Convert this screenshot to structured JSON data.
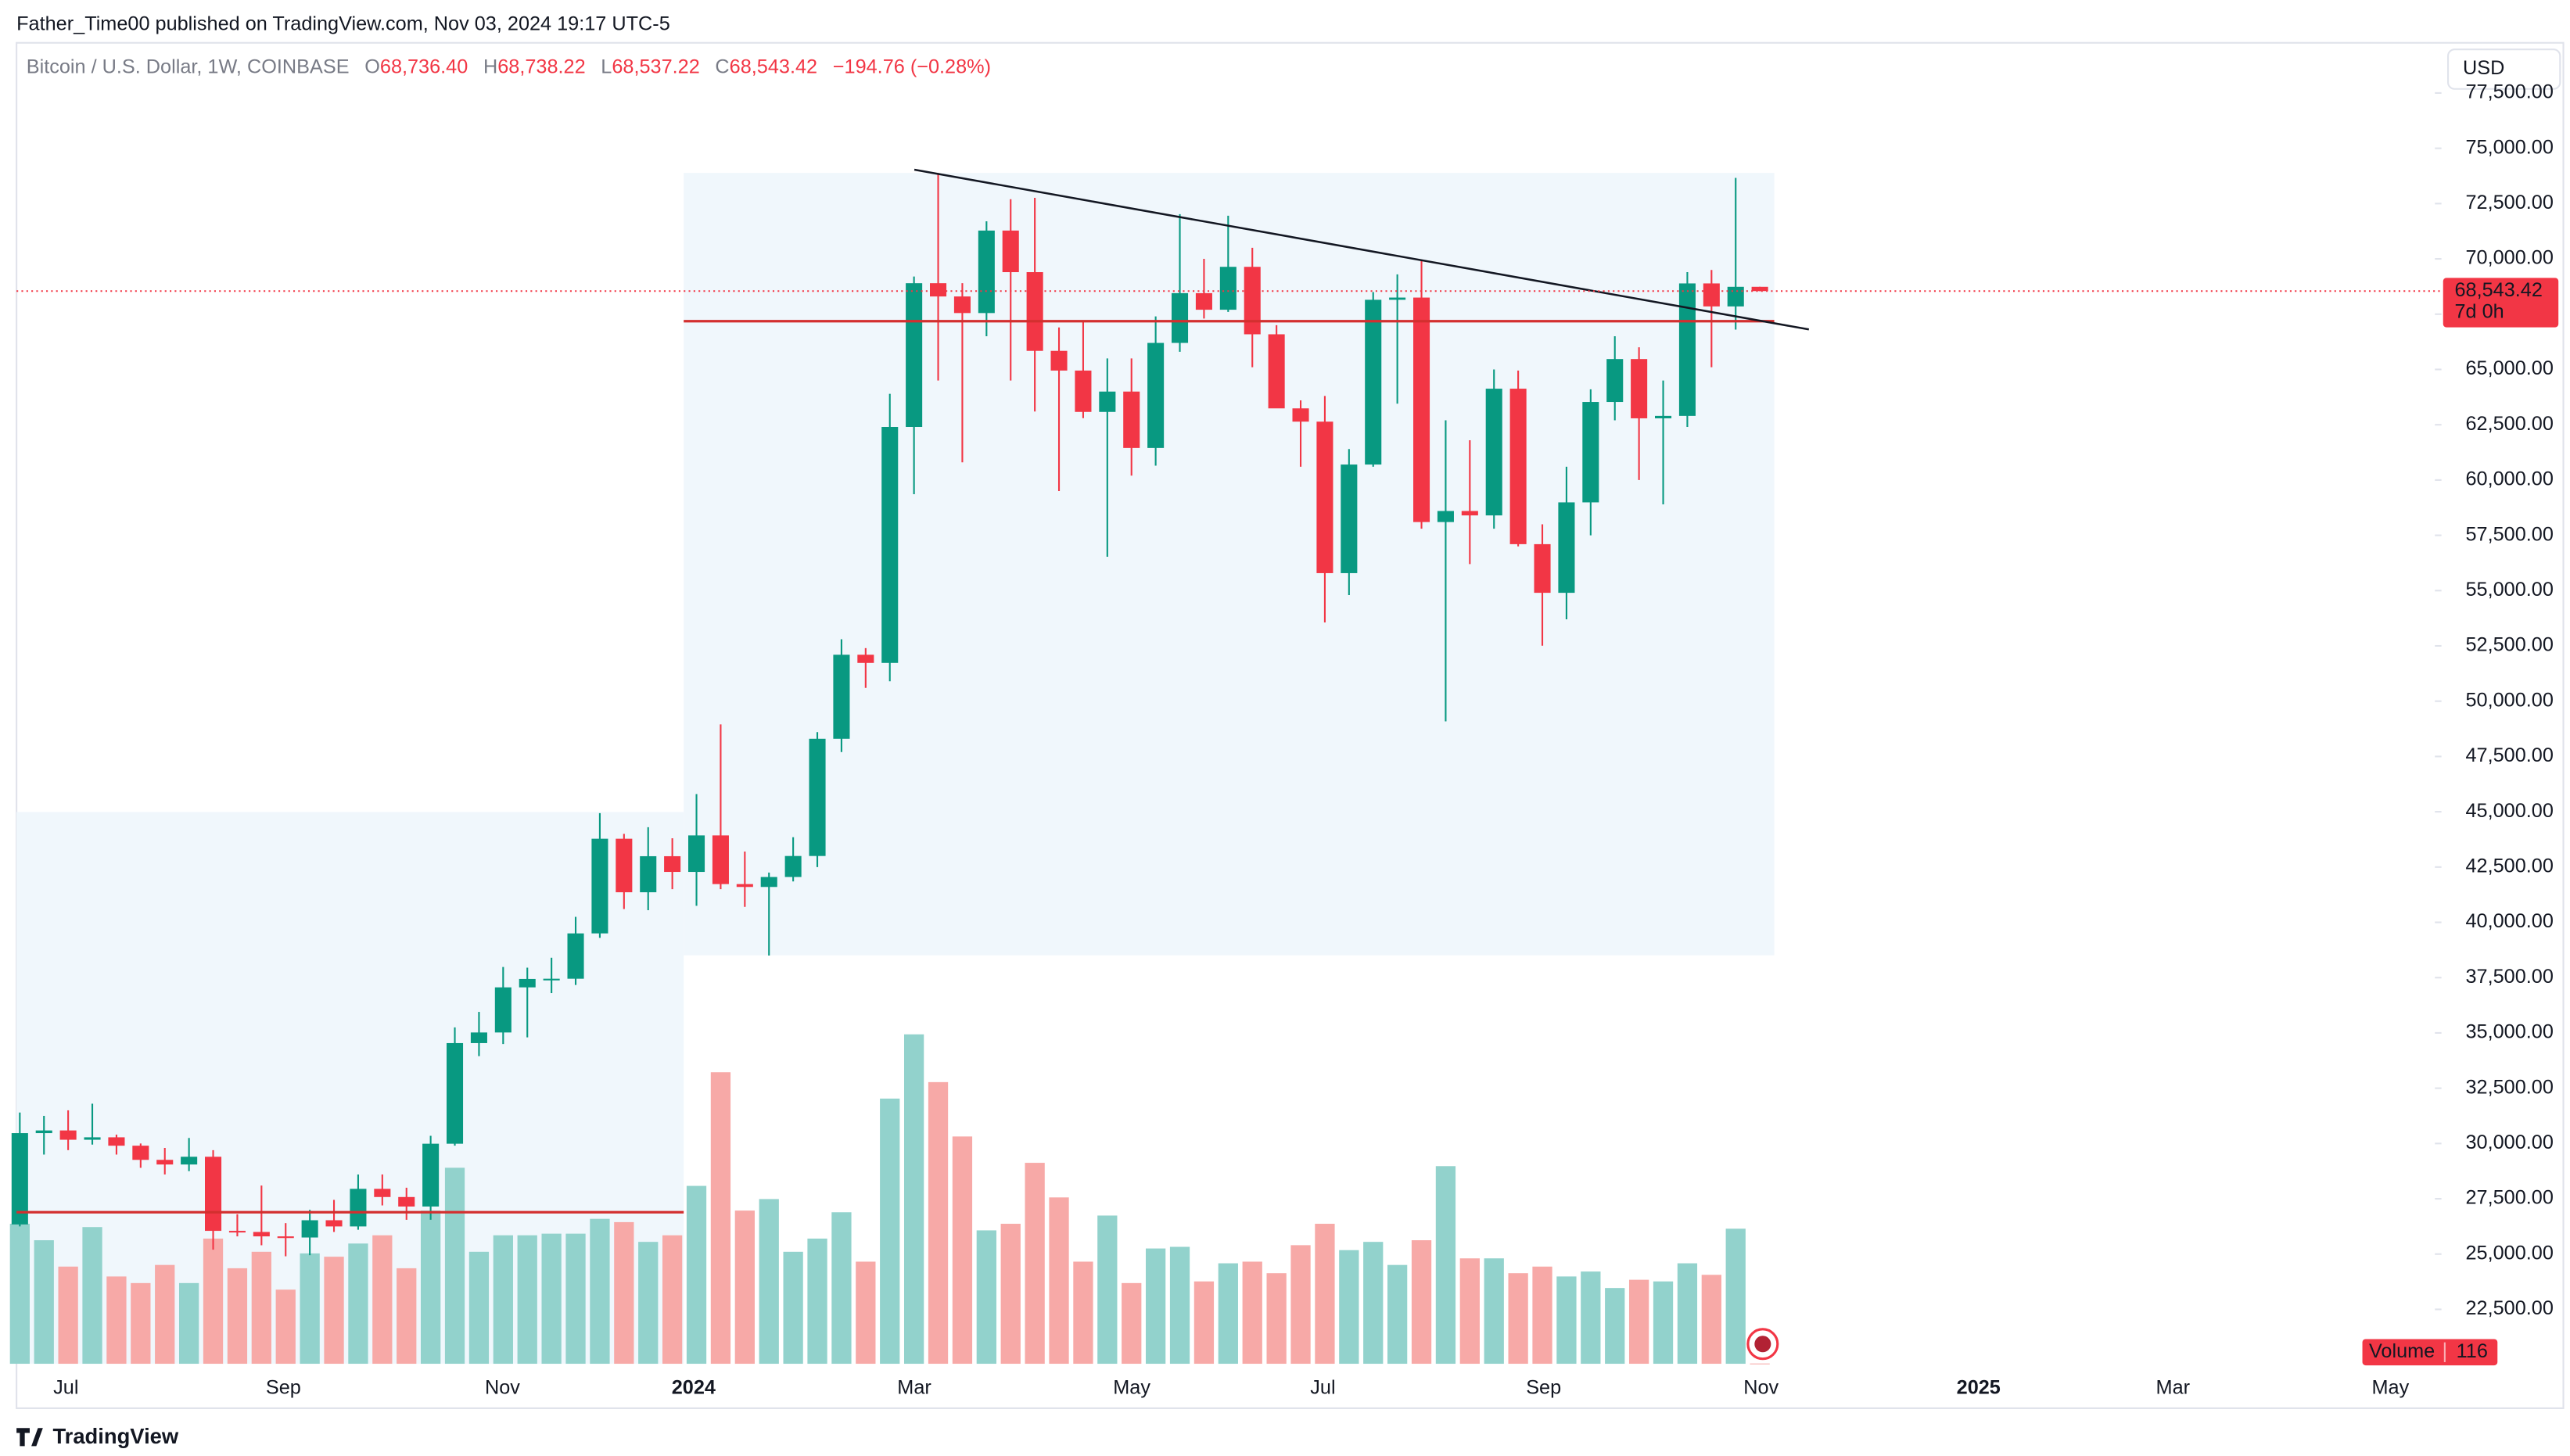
{
  "header": {
    "publisher": "Father_Time00 published on TradingView.com, Nov 03, 2024 19:17 UTC-5"
  },
  "footer": {
    "brand": "TradingView"
  },
  "chart_data": {
    "type": "candlestick",
    "title": "Bitcoin / U.S. Dollar, 1W, COINBASE",
    "legend": {
      "o_label": "O",
      "o": "68,736.40",
      "h_label": "H",
      "h": "68,738.22",
      "l_label": "L",
      "l": "68,537.22",
      "c_label": "C",
      "c": "68,543.42",
      "change": "−194.76 (−0.28%)"
    },
    "currency": "USD",
    "categories": [
      null,
      null,
      null,
      null,
      null,
      null,
      null,
      null,
      null,
      null,
      null,
      null,
      null,
      null,
      null,
      null,
      null,
      null,
      null,
      null,
      null,
      null,
      null,
      null,
      null,
      null,
      null,
      null,
      null,
      null,
      null,
      null,
      null,
      null,
      null,
      null,
      null,
      null,
      null,
      null,
      null,
      null,
      null,
      null,
      null,
      null,
      null,
      null,
      null,
      null,
      null,
      null,
      null,
      null,
      null,
      null,
      null,
      null,
      null,
      null,
      null,
      null,
      null,
      null,
      null,
      null,
      null,
      null,
      null,
      null,
      null,
      null,
      null
    ],
    "open": [
      26340,
      30470,
      30590,
      30170,
      30280,
      29900,
      29260,
      29050,
      29400,
      26050,
      26000,
      25800,
      25750,
      26530,
      26250,
      27950,
      27580,
      27150,
      29990,
      34540,
      35020,
      37060,
      37440,
      37450,
      39500,
      43780,
      41360,
      42990,
      42280,
      43930,
      41730,
      41600,
      42050,
      43000,
      48300,
      52100,
      51730,
      62400,
      68900,
      68300,
      67550,
      71280,
      69400,
      65840,
      64950,
      63080,
      64000,
      61450,
      66200,
      68450,
      67700,
      69640,
      66590,
      63240,
      62640,
      55790,
      60700,
      68150,
      68250,
      58100,
      58600,
      58400,
      64130,
      57100,
      54900,
      58990,
      63530,
      65470,
      62790,
      62900,
      68890,
      67850,
      68736.4
    ],
    "high": [
      31400,
      31250,
      31500,
      31800,
      30400,
      30000,
      29800,
      30250,
      29700,
      26800,
      28100,
      26400,
      27000,
      27450,
      28600,
      28600,
      28000,
      30350,
      35250,
      35950,
      37980,
      37950,
      38400,
      40250,
      44940,
      44000,
      44300,
      43800,
      45800,
      48950,
      43200,
      42250,
      43850,
      48600,
      52800,
      52400,
      63900,
      69200,
      73880,
      68900,
      71700,
      72700,
      72760,
      66900,
      67200,
      65500,
      65500,
      67400,
      72020,
      70000,
      71950,
      70500,
      67000,
      63600,
      63800,
      61400,
      68500,
      69300,
      69940,
      62700,
      61800,
      65000,
      64950,
      58000,
      60600,
      64100,
      66500,
      66000,
      64500,
      69400,
      69500,
      73660,
      68738.22
    ],
    "low": [
      26250,
      29500,
      29700,
      29950,
      29500,
      28900,
      28600,
      28750,
      25200,
      25800,
      25400,
      24900,
      24950,
      26000,
      26100,
      27200,
      26550,
      26550,
      29900,
      33950,
      34500,
      34800,
      36800,
      37170,
      39300,
      40600,
      40550,
      41500,
      40750,
      41500,
      40700,
      38500,
      41850,
      42500,
      47700,
      50600,
      50900,
      59360,
      64500,
      60800,
      66500,
      64500,
      63100,
      59500,
      62800,
      56530,
      60200,
      60650,
      65800,
      67300,
      67600,
      65100,
      63400,
      60600,
      53560,
      54800,
      60600,
      63450,
      57800,
      49090,
      56200,
      57800,
      57000,
      52510,
      53700,
      57500,
      62700,
      60000,
      58900,
      62400,
      65100,
      66800,
      68537.22
    ],
    "close": [
      30470,
      30590,
      30170,
      30280,
      29900,
      29260,
      29050,
      29400,
      26050,
      26000,
      25800,
      25750,
      26530,
      26250,
      27950,
      27580,
      27150,
      29990,
      34540,
      35020,
      37060,
      37440,
      37450,
      39500,
      43780,
      41360,
      42990,
      42280,
      43930,
      41730,
      41600,
      42050,
      43000,
      48300,
      52100,
      51730,
      62400,
      68900,
      68300,
      67550,
      71280,
      69400,
      65840,
      64950,
      63080,
      64000,
      61450,
      66200,
      68450,
      67700,
      69640,
      66590,
      63240,
      62640,
      55790,
      60700,
      68150,
      68250,
      58100,
      58600,
      58400,
      64130,
      57100,
      54900,
      58990,
      63530,
      65470,
      62790,
      62900,
      68890,
      67850,
      68736.4,
      68543.42
    ],
    "volume": [
      63750,
      56250,
      44250,
      62250,
      39750,
      36750,
      45000,
      36750,
      57000,
      43500,
      51000,
      33750,
      50250,
      48750,
      54750,
      58500,
      43500,
      69750,
      89250,
      51000,
      58500,
      58500,
      59250,
      59250,
      66000,
      64500,
      55500,
      58500,
      81000,
      132750,
      69750,
      75000,
      51000,
      57000,
      69000,
      46500,
      120750,
      150000,
      128250,
      103500,
      60750,
      63750,
      91500,
      75750,
      46500,
      67500,
      36750,
      52500,
      53250,
      37500,
      45750,
      46500,
      41250,
      54000,
      63750,
      51750,
      55500,
      45000,
      56250,
      90000,
      48000,
      48000,
      41250,
      44250,
      39750,
      42000,
      34500,
      38250,
      37500,
      45750,
      40500,
      61500,
      116
    ],
    "volume_label": "Volume",
    "colors": {
      "up": "#089981",
      "down": "#f23645",
      "volume_up": "#92d2cc",
      "volume_down": "#f7a9a7"
    },
    "ylim": [
      20040,
      79620
    ],
    "y2lim": [
      0,
      600000
    ],
    "yticks": [
      {
        "value": 22500,
        "label": "22,500.00"
      },
      {
        "value": 25000,
        "label": "25,000.00"
      },
      {
        "value": 27500,
        "label": "27,500.00"
      },
      {
        "value": 30000,
        "label": "30,000.00"
      },
      {
        "value": 32500,
        "label": "32,500.00"
      },
      {
        "value": 35000,
        "label": "35,000.00"
      },
      {
        "value": 37500,
        "label": "37,500.00"
      },
      {
        "value": 40000,
        "label": "40,000.00"
      },
      {
        "value": 42500,
        "label": "42,500.00"
      },
      {
        "value": 45000,
        "label": "45,000.00"
      },
      {
        "value": 47500,
        "label": "47,500.00"
      },
      {
        "value": 50000,
        "label": "50,000.00"
      },
      {
        "value": 52500,
        "label": "52,500.00"
      },
      {
        "value": 55000,
        "label": "55,000.00"
      },
      {
        "value": 57500,
        "label": "57,500.00"
      },
      {
        "value": 60000,
        "label": "60,000.00"
      },
      {
        "value": 62500,
        "label": "62,500.00"
      },
      {
        "value": 65000,
        "label": "65,000.00"
      },
      {
        "value": 67500,
        "label": "67,500.00"
      },
      {
        "value": 70000,
        "label": "70,000.00"
      },
      {
        "value": 72500,
        "label": "72,500.00"
      },
      {
        "value": 75000,
        "label": "75,000.00"
      },
      {
        "value": 77500,
        "label": "77,500.00"
      }
    ],
    "xticks": [
      "Jul",
      "Sep",
      "Nov",
      "2024",
      "Mar",
      "May",
      "Jul",
      "Sep",
      "Nov",
      "2025",
      "Mar",
      "May"
    ],
    "last_price": {
      "value": 68543.42,
      "label": "68,543.42"
    },
    "countdown": "7d 0h",
    "grid": false
  }
}
